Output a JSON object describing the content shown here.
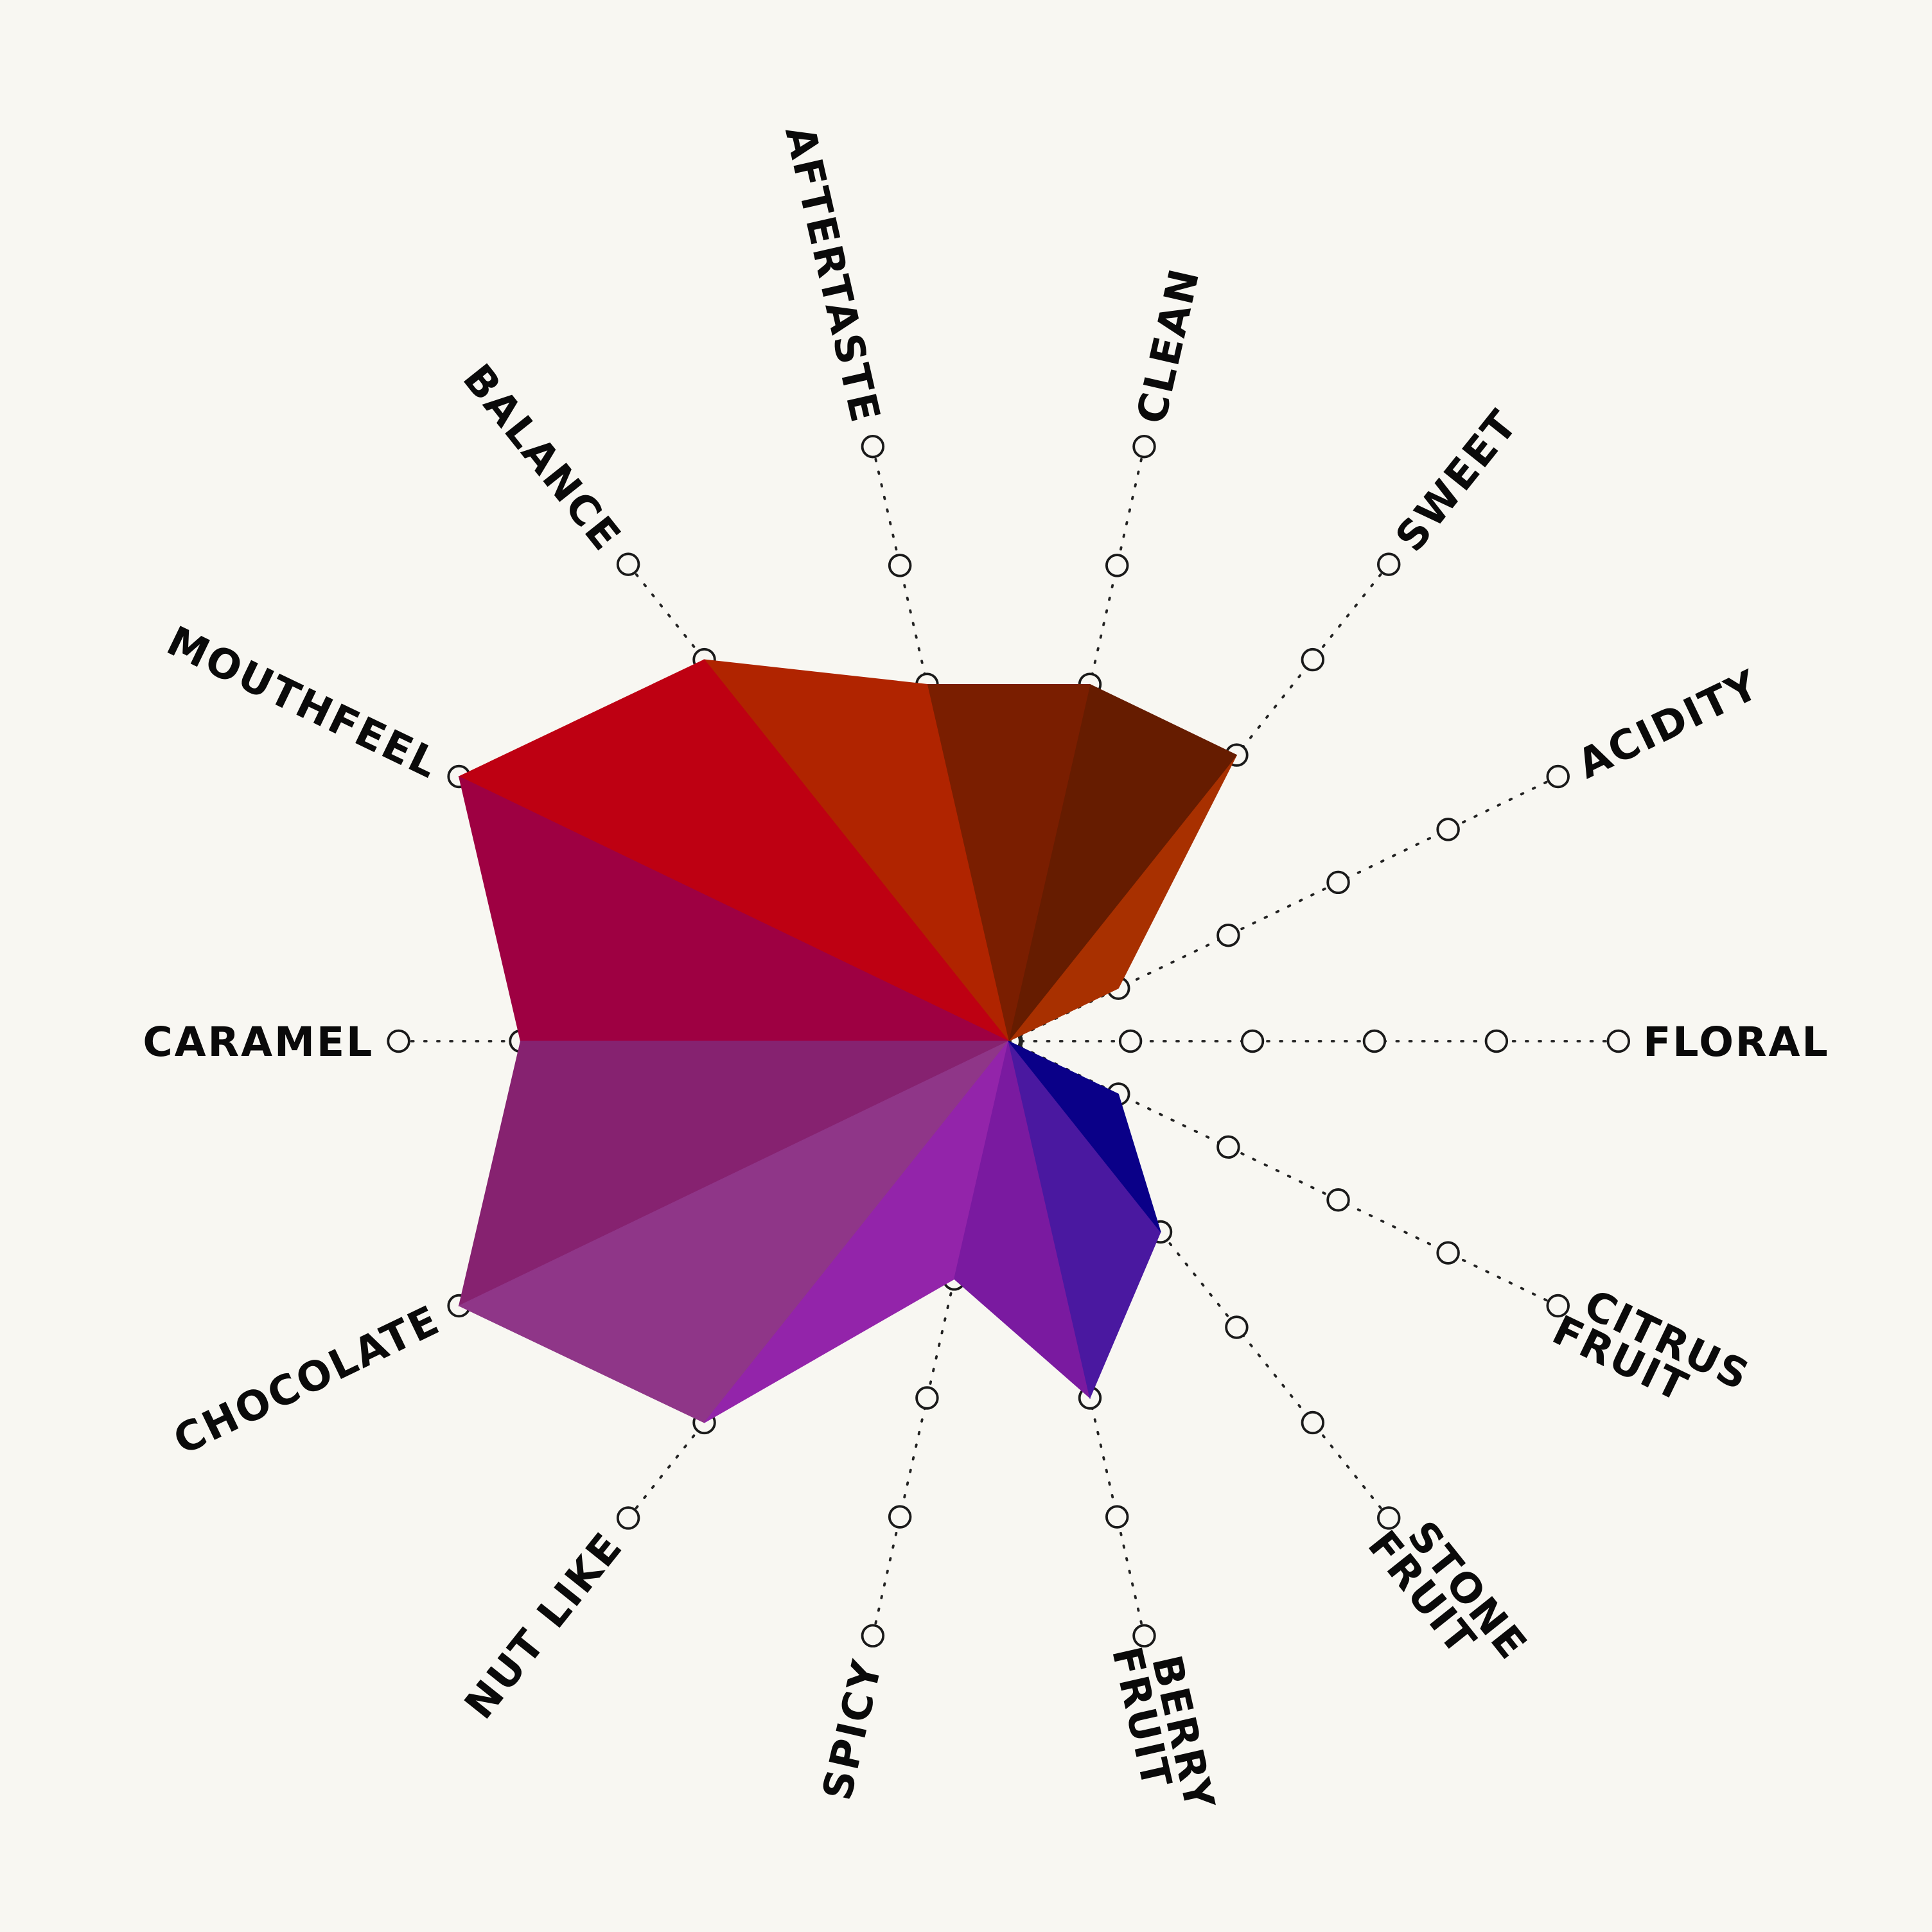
{
  "chart_data": {
    "type": "radar",
    "scale": {
      "min": 0,
      "max": 5,
      "levels": [
        1,
        2,
        3,
        4,
        5
      ]
    },
    "grid": "dotted spokes with level circles",
    "axes": [
      {
        "label": [
          "FLORAL"
        ],
        "value": 0
      },
      {
        "label": [
          "ACIDITY"
        ],
        "value": 1
      },
      {
        "label": [
          "SWEET"
        ],
        "value": 3
      },
      {
        "label": [
          "CLEAN"
        ],
        "value": 3
      },
      {
        "label": [
          "AFTERTASTE"
        ],
        "value": 3
      },
      {
        "label": [
          "BALANCE"
        ],
        "value": 4
      },
      {
        "label": [
          "MOUTHFEEL"
        ],
        "value": 5
      },
      {
        "label": [
          "CARAMEL"
        ],
        "value": 4
      },
      {
        "label": [
          "CHOCOLATE"
        ],
        "value": 5
      },
      {
        "label": [
          "NUT LIKE"
        ],
        "value": 4
      },
      {
        "label": [
          "SPICY"
        ],
        "value": 2
      },
      {
        "label": [
          "BERRY",
          "FRUIT"
        ],
        "value": 3
      },
      {
        "label": [
          "STONE",
          "FRUIT"
        ],
        "value": 2
      },
      {
        "label": [
          "CITRUS",
          "FRUIT"
        ],
        "value": 1
      }
    ],
    "wedge_colors": [
      "#a83000",
      "#a83000",
      "#661c00",
      "#7a1e00",
      "#b02400",
      "#be0012",
      "#9e0042",
      "#862270",
      "#8f3688",
      "#9324aa",
      "#7a1aa0",
      "#4a18a0",
      "#0a0088",
      "#0a0088"
    ]
  }
}
